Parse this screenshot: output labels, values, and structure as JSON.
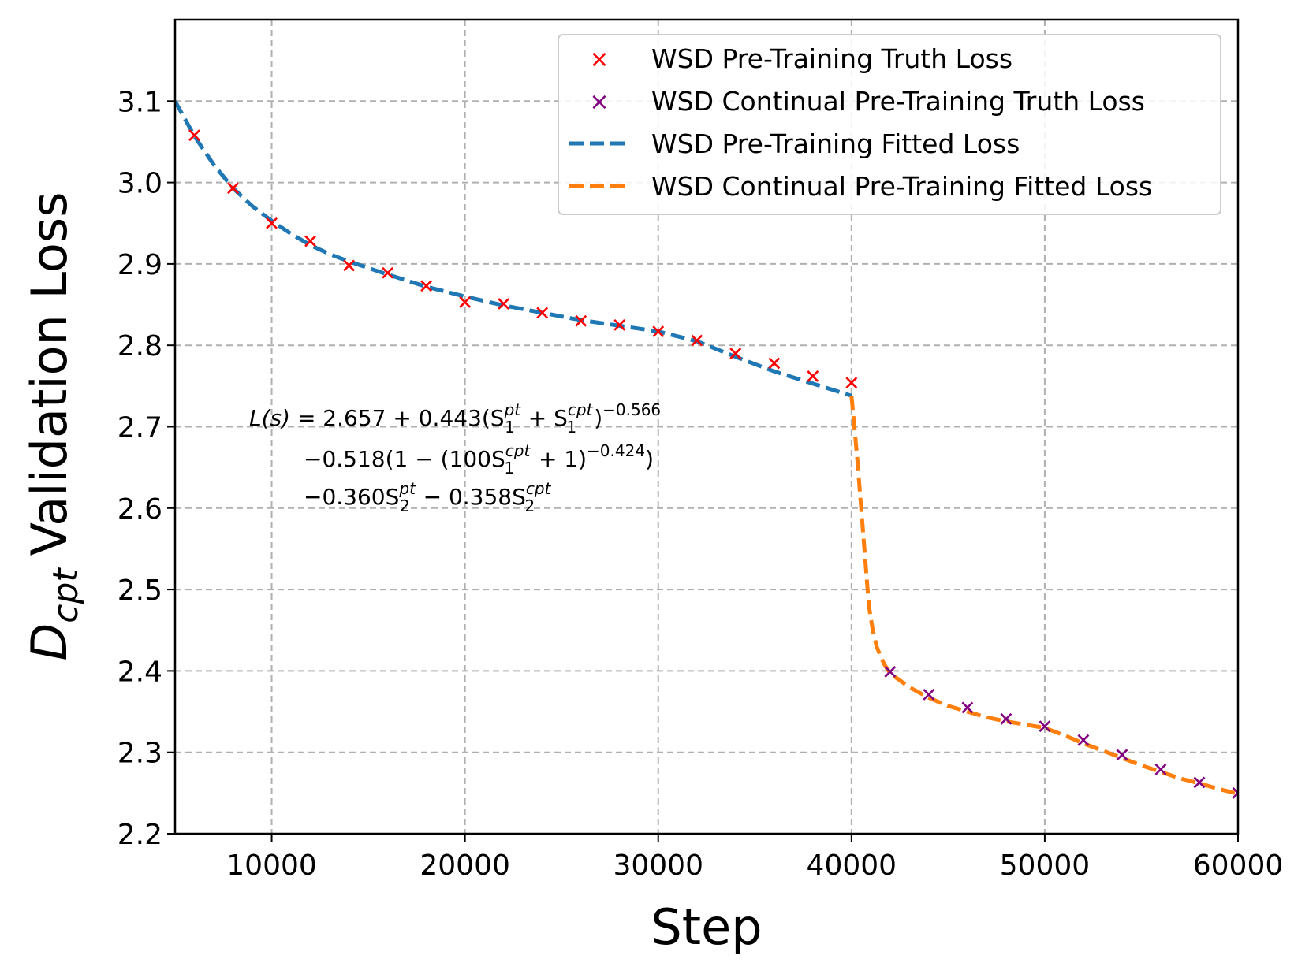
{
  "chart_data": {
    "type": "line",
    "xlabel": "Step",
    "ylabel_main": "D",
    "ylabel_sub": "cpt",
    "ylabel_rest": "Validation Loss",
    "xlim": [
      5000,
      60000
    ],
    "ylim": [
      2.2,
      3.2
    ],
    "xticks": [
      10000,
      20000,
      30000,
      40000,
      50000,
      60000
    ],
    "yticks": [
      2.2,
      2.3,
      2.4,
      2.5,
      2.6,
      2.7,
      2.8,
      2.9,
      3.0,
      3.1
    ],
    "xtick_labels": [
      "10000",
      "20000",
      "30000",
      "40000",
      "50000",
      "60000"
    ],
    "ytick_labels": [
      "2.2",
      "2.3",
      "2.4",
      "2.5",
      "2.6",
      "2.7",
      "2.8",
      "2.9",
      "3.0",
      "3.1"
    ],
    "grid": true,
    "legend_position": "top-right",
    "series": [
      {
        "name": "WSD Pre-Training Truth Loss",
        "kind": "scatter",
        "marker": "x",
        "color": "#ff0000",
        "x": [
          6000,
          8000,
          10000,
          12000,
          14000,
          16000,
          18000,
          20000,
          22000,
          24000,
          26000,
          28000,
          30000,
          32000,
          34000,
          36000,
          38000,
          40000
        ],
        "y": [
          3.058,
          2.993,
          2.95,
          2.928,
          2.898,
          2.889,
          2.873,
          2.853,
          2.851,
          2.84,
          2.83,
          2.825,
          2.817,
          2.806,
          2.79,
          2.778,
          2.762,
          2.754
        ]
      },
      {
        "name": "WSD Continual Pre-Training Truth Loss",
        "kind": "scatter",
        "marker": "x",
        "color": "#800080",
        "x": [
          42000,
          44000,
          46000,
          48000,
          50000,
          52000,
          54000,
          56000,
          58000,
          60000
        ],
        "y": [
          2.399,
          2.371,
          2.355,
          2.341,
          2.332,
          2.315,
          2.297,
          2.279,
          2.263,
          2.25
        ]
      },
      {
        "name": "WSD Pre-Training Fitted Loss",
        "kind": "line",
        "dash": true,
        "color": "#1f77b4",
        "x": [
          5000,
          6000,
          7000,
          8000,
          9000,
          10000,
          11000,
          12000,
          13000,
          14000,
          16000,
          18000,
          20000,
          22000,
          24000,
          26000,
          28000,
          30000,
          32000,
          34000,
          36000,
          38000,
          40000
        ],
        "y": [
          3.1,
          3.057,
          3.022,
          2.993,
          2.971,
          2.953,
          2.937,
          2.923,
          2.912,
          2.903,
          2.887,
          2.872,
          2.86,
          2.849,
          2.84,
          2.831,
          2.824,
          2.817,
          2.805,
          2.786,
          2.768,
          2.753,
          2.738
        ]
      },
      {
        "name": "WSD Continual Pre-Training Fitted Loss",
        "kind": "line",
        "dash": true,
        "color": "#ff7f0e",
        "x": [
          40000,
          40150,
          40300,
          40500,
          40700,
          40900,
          41100,
          41300,
          41500,
          41700,
          42000,
          43000,
          44000,
          45000,
          46000,
          47000,
          48000,
          49000,
          50000,
          51000,
          52000,
          53000,
          54000,
          55000,
          56000,
          57000,
          58000,
          59000,
          60000
        ],
        "y": [
          2.738,
          2.7,
          2.66,
          2.6,
          2.54,
          2.48,
          2.45,
          2.43,
          2.418,
          2.408,
          2.397,
          2.38,
          2.367,
          2.357,
          2.35,
          2.343,
          2.338,
          2.334,
          2.33,
          2.321,
          2.311,
          2.302,
          2.293,
          2.284,
          2.276,
          2.268,
          2.262,
          2.255,
          2.249
        ]
      }
    ],
    "annotation": {
      "line1": {
        "lhs": "L(s)",
        "eq": " = 2.657 + 0.443(S",
        "sup1": "pt",
        "sub1": "1",
        "mid": " + S",
        "sup2": "cpt",
        "sub2": "1",
        "end": ")",
        "exp": "−0.566"
      },
      "line2": {
        "pre": "−0.518(1 − (100S",
        "sup": "cpt",
        "sub": "1",
        "mid": " + 1)",
        "exp": "−0.424",
        "end": ")"
      },
      "line3": {
        "pre": "−0.360S",
        "sup1": "pt",
        "sub1": "2",
        "mid": " − 0.358S",
        "sup2": "cpt",
        "sub2": "2"
      }
    }
  }
}
